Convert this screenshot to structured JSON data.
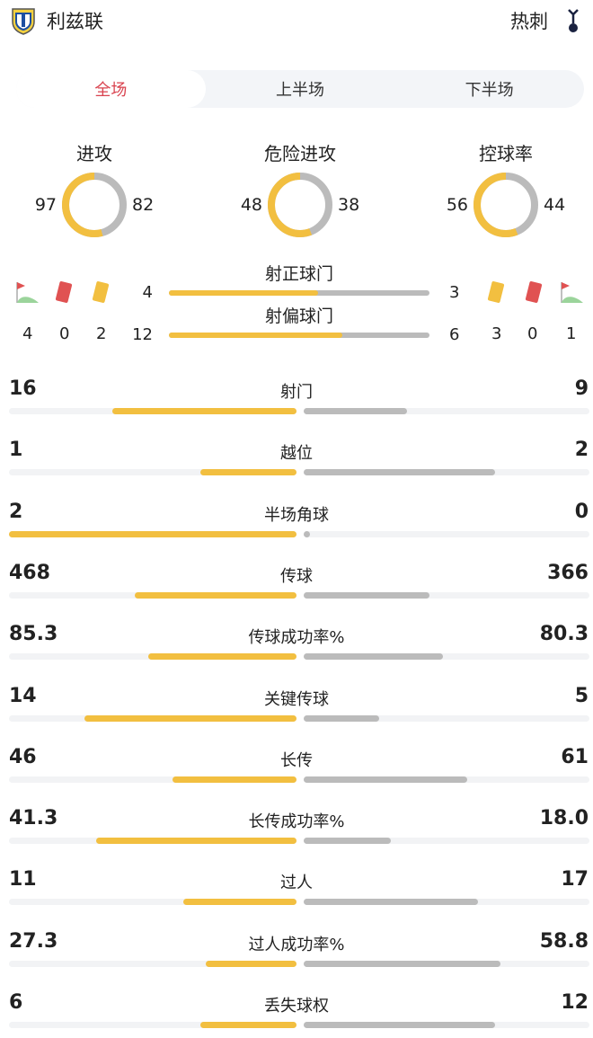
{
  "header": {
    "home": {
      "name": "利兹联",
      "logo": "leeds-crest-icon"
    },
    "away": {
      "name": "热刺",
      "logo": "tottenham-cockerel-icon"
    }
  },
  "tabs": [
    {
      "label": "全场",
      "active": true
    },
    {
      "label": "上半场",
      "active": false
    },
    {
      "label": "下半场",
      "active": false
    }
  ],
  "colors": {
    "home": "#f2bf40",
    "away": "#bbbbbb",
    "active_tab": "#d9434f"
  },
  "donuts": [
    {
      "title": "进攻",
      "home": 97,
      "away": 82
    },
    {
      "title": "危险进攻",
      "home": 48,
      "away": 38
    },
    {
      "title": "控球率",
      "home": 56,
      "away": 44
    }
  ],
  "events": {
    "home": {
      "corners": 4,
      "red_cards": 0,
      "yellow_cards": 2
    },
    "away": {
      "yellow_cards": 3,
      "red_cards": 0,
      "corners": 1
    }
  },
  "shot_bars": [
    {
      "label": "射正球门",
      "home": 4,
      "away": 3
    },
    {
      "label": "射偏球门",
      "home": 12,
      "away": 6
    }
  ],
  "stats": [
    {
      "label": "射门",
      "home": "16",
      "away": "9"
    },
    {
      "label": "越位",
      "home": "1",
      "away": "2"
    },
    {
      "label": "半场角球",
      "home": "2",
      "away": "0"
    },
    {
      "label": "传球",
      "home": "468",
      "away": "366"
    },
    {
      "label": "传球成功率%",
      "home": "85.3",
      "away": "80.3"
    },
    {
      "label": "关键传球",
      "home": "14",
      "away": "5"
    },
    {
      "label": "长传",
      "home": "46",
      "away": "61"
    },
    {
      "label": "长传成功率%",
      "home": "41.3",
      "away": "18.0"
    },
    {
      "label": "过人",
      "home": "11",
      "away": "17"
    },
    {
      "label": "过人成功率%",
      "home": "27.3",
      "away": "58.8"
    },
    {
      "label": "丢失球权",
      "home": "6",
      "away": "12"
    }
  ]
}
